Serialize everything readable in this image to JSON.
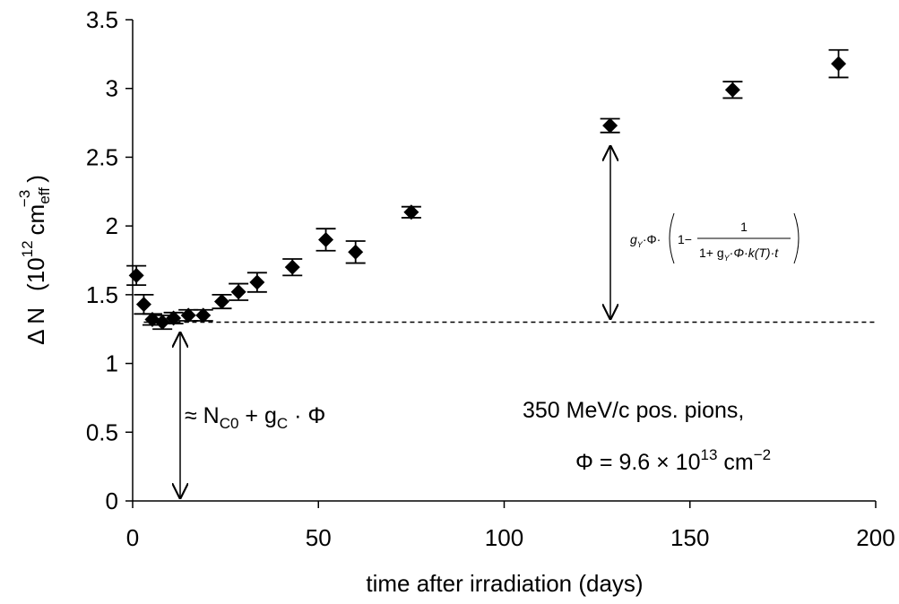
{
  "chart_data": {
    "type": "scatter",
    "xlabel": "time after irradiation (days)",
    "ylabel": {
      "main": "Δ N",
      "open": "(10",
      "exp": "12",
      "unit": "cm",
      "sub": "eff",
      "sup": "−3",
      "close": ")"
    },
    "x": [
      1,
      3,
      5.3,
      8,
      11,
      15,
      19,
      24,
      28.5,
      33.5,
      43,
      52,
      60,
      75,
      128.5,
      161.5,
      190
    ],
    "values": [
      1.64,
      1.43,
      1.32,
      1.3,
      1.33,
      1.35,
      1.35,
      1.45,
      1.52,
      1.59,
      1.7,
      1.9,
      1.81,
      2.1,
      2.73,
      2.99,
      3.18
    ],
    "errors": [
      0.07,
      0.07,
      0.04,
      0.05,
      0.04,
      0.04,
      0.04,
      0.05,
      0.06,
      0.07,
      0.06,
      0.08,
      0.08,
      0.04,
      0.05,
      0.06,
      0.1
    ],
    "color": "#000000",
    "reference_line": 1.3,
    "xlim": [
      0,
      200
    ],
    "ylim": [
      0,
      3.5
    ],
    "xticks": [
      0,
      50,
      100,
      150,
      200
    ],
    "yticks": [
      0,
      0.5,
      1,
      1.5,
      2,
      2.5,
      3,
      3.5
    ],
    "annotations": {
      "lower": {
        "a": "≈ N",
        "sub": "C0",
        "b": " + g",
        "sub2": "C",
        "c": " · Φ"
      },
      "beam": "350 MeV/c pos. pions,",
      "fluence": {
        "a": "Φ = 9.6 × 10",
        "sup": "13",
        "b": " cm",
        "sup2": "−2"
      },
      "formula": {
        "g": "g",
        "y": "Y",
        "phi": "·Φ·",
        "one": "1−",
        "num": "1",
        "den_a": "1+ g",
        "den_y": "Y",
        "den_b": "·Φ·k(T)·t"
      }
    }
  }
}
